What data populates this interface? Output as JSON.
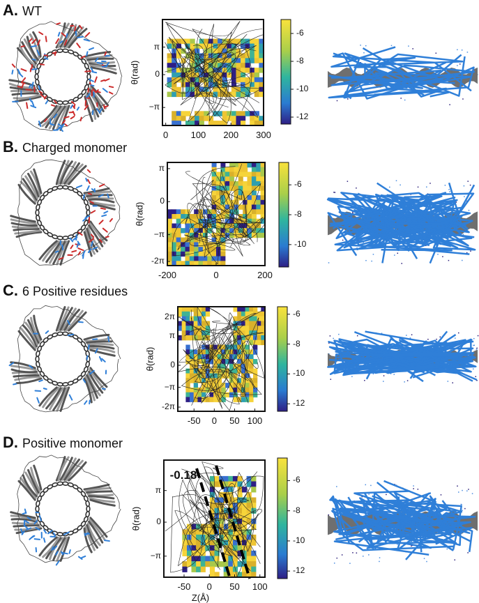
{
  "panels": [
    {
      "letter": "A.",
      "title": "WT"
    },
    {
      "letter": "B.",
      "title": "Charged monomer"
    },
    {
      "letter": "C.",
      "title": "6 Positive residues"
    },
    {
      "letter": "D.",
      "title": "Positive monomer"
    }
  ],
  "y_axis_label": "θ(rad)",
  "x_axis_label": "Z(Å)",
  "annotation_slope": "-0.18",
  "colors": {
    "yellow": "#f2d23a",
    "orange": "#e5b630",
    "teal": "#2aa59a",
    "blue": "#3a6fd6",
    "dark": "#2c1f7a",
    "protein_blue": "#2f7fd8",
    "protein_red": "#cc2b2b",
    "gray": "#777777"
  },
  "chart_data": [
    {
      "type": "heatmap",
      "panel": "A",
      "x_ticks": [
        "0",
        "100",
        "200",
        "300"
      ],
      "y_ticks": [
        "π",
        "0",
        "−π"
      ],
      "xlim": [
        -10,
        300
      ],
      "colorbar": {
        "ticks": [
          "-6",
          "-8",
          "-10",
          "-12"
        ],
        "range": [
          -12.5,
          -5
        ]
      }
    },
    {
      "type": "heatmap",
      "panel": "B",
      "x_ticks": [
        "-200",
        "0",
        "200"
      ],
      "y_ticks": [
        "π",
        "0",
        "−π",
        "-2π"
      ],
      "xlim": [
        -200,
        200
      ],
      "colorbar": {
        "ticks": [
          "-6",
          "-8",
          "-10"
        ],
        "range": [
          -11.5,
          -4.5
        ]
      }
    },
    {
      "type": "heatmap",
      "panel": "C",
      "x_ticks": [
        "-50",
        "0",
        "50",
        "100"
      ],
      "y_ticks": [
        "2π",
        "π",
        "0",
        "−π",
        "-2π"
      ],
      "xlim": [
        -90,
        125
      ],
      "colorbar": {
        "ticks": [
          "-6",
          "-8",
          "-10",
          "-12"
        ],
        "range": [
          -12.5,
          -5.5
        ]
      }
    },
    {
      "type": "heatmap",
      "panel": "D",
      "x_ticks": [
        "-50",
        "0",
        "50",
        "100"
      ],
      "y_ticks": [
        "π",
        "0",
        "−π"
      ],
      "xlim": [
        -90,
        110
      ],
      "colorbar": {
        "ticks": [
          "-6",
          "-8",
          "-10",
          "-12"
        ],
        "range": [
          -12.5,
          -4.5
        ]
      }
    }
  ]
}
